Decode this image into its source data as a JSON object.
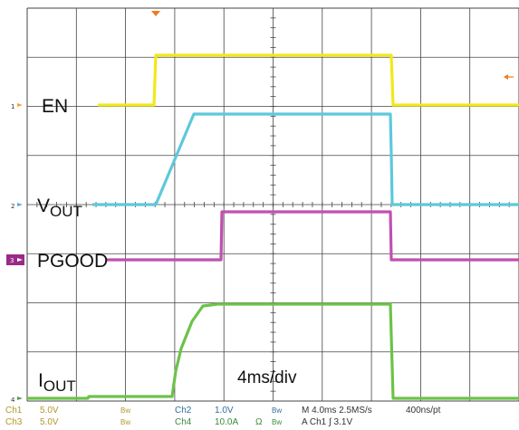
{
  "scope": {
    "colors": {
      "en": "#f2e81a",
      "vout": "#5ec8dc",
      "pgood": "#c14fb0",
      "iout": "#6cc24a",
      "grid": "#444444",
      "trigger": "#f07a1e"
    },
    "labels": {
      "en": "EN",
      "vout_main": "V",
      "vout_sub": "OUT",
      "pgood": "PGOOD",
      "iout_main": "I",
      "iout_sub": "OUT"
    },
    "timebase_note": "4ms/div",
    "markers": {
      "ch1": "1",
      "ch2": "2",
      "ch3": "3",
      "ch4": "4"
    }
  },
  "status": {
    "row1": {
      "ch1_name": "Ch1",
      "ch1_scale": "5.0V",
      "ch1_bw": "Bw",
      "ch2_name": "Ch2",
      "ch2_scale": "1.0V",
      "ch2_bw": "Bw",
      "timebase": "M 4.0ms 2.5MS/s",
      "record": "400ns/pt"
    },
    "row2": {
      "ch3_name": "Ch3",
      "ch3_scale": "5.0V",
      "ch3_bw": "Bw",
      "ch4_name": "Ch4",
      "ch4_scale": "10.0A",
      "ch4_ohm": "Ω",
      "ch4_bw": "Bw",
      "trigger": "A  Ch1  ∫  3.1V"
    }
  }
}
